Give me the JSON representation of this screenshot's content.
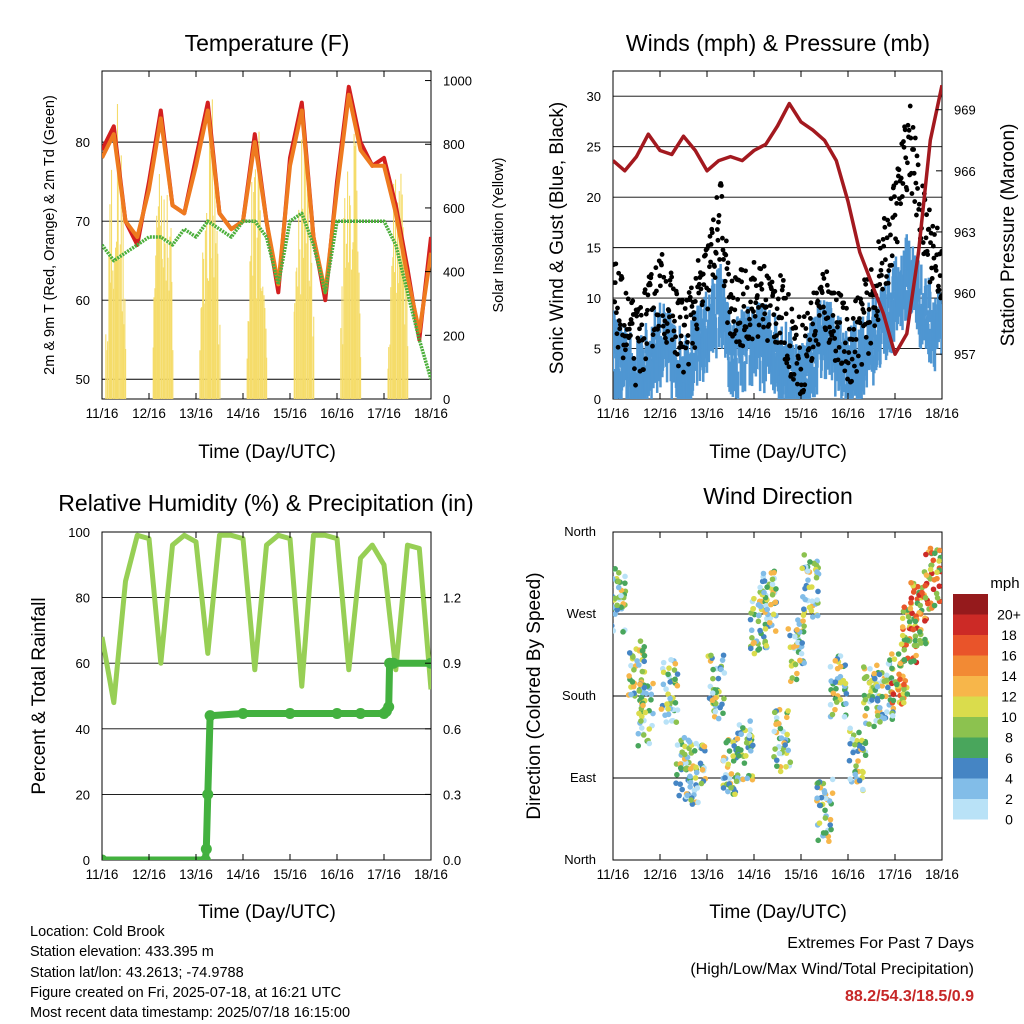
{
  "chart_data": [
    {
      "type": "line",
      "title": "Temperature (F)",
      "xlabel": "Time (Day/UTC)",
      "ylabel": "2m & 9m T (Red, Orange) & 2m Td (Green)",
      "y2label": "Solar Insolation (Yellow)",
      "x_ticks": [
        "11/16",
        "12/16",
        "13/16",
        "14/16",
        "15/16",
        "16/16",
        "17/16",
        "18/16"
      ],
      "ylim": [
        47.5,
        89
      ],
      "y_ticks": [
        50,
        60,
        70,
        80
      ],
      "y2lim": [
        0,
        1030
      ],
      "y2_ticks": [
        0,
        200,
        400,
        600,
        800,
        1000
      ],
      "colors": {
        "t2m": "#d32020",
        "t9m": "#ee7a1f",
        "td": "#4caf3c",
        "solar": "#f5dc6a"
      },
      "series": [
        {
          "key": "t2m",
          "day": [
            11,
            11.25,
            11.5,
            11.75,
            12,
            12.25,
            12.5,
            12.75,
            13,
            13.25,
            13.5,
            13.75,
            14,
            14.25,
            14.5,
            14.75,
            15,
            15.25,
            15.5,
            15.75,
            16,
            16.25,
            16.5,
            16.75,
            17,
            17.25,
            17.5,
            17.75,
            18
          ],
          "values": [
            79,
            82,
            70,
            67,
            75,
            84,
            72,
            71,
            78,
            85,
            71,
            69,
            70,
            81,
            70,
            61,
            78,
            85,
            68,
            60,
            75,
            87,
            80,
            77,
            78,
            72,
            64,
            55,
            68
          ]
        },
        {
          "key": "t9m",
          "day": [
            11,
            11.25,
            11.5,
            11.75,
            12,
            12.25,
            12.5,
            12.75,
            13,
            13.25,
            13.5,
            13.75,
            14,
            14.25,
            14.5,
            14.75,
            15,
            15.25,
            15.5,
            15.75,
            16,
            16.25,
            16.5,
            16.75,
            17,
            17.25,
            17.5,
            17.75,
            18
          ],
          "values": [
            78,
            81,
            70,
            68,
            74,
            83,
            72,
            71,
            77,
            84,
            71,
            69,
            70,
            80,
            70,
            62,
            77,
            84,
            68,
            61,
            74,
            86,
            79,
            77,
            77,
            71,
            63,
            56,
            66
          ]
        },
        {
          "key": "td",
          "day": [
            11,
            11.25,
            11.5,
            11.75,
            12,
            12.25,
            12.5,
            12.75,
            13,
            13.25,
            13.5,
            13.75,
            14,
            14.25,
            14.5,
            14.75,
            15,
            15.25,
            15.5,
            15.75,
            16,
            16.25,
            16.5,
            16.75,
            17,
            17.25,
            17.5,
            17.75,
            18
          ],
          "values": [
            67,
            65,
            66,
            67,
            68,
            68,
            67,
            69,
            68,
            70,
            69,
            68,
            70,
            70,
            68,
            62,
            70,
            71,
            67,
            61,
            70,
            70,
            70,
            70,
            70,
            67,
            61,
            55,
            50
          ]
        }
      ],
      "solar_peak": {
        "day": [
          11.3,
          12.3,
          13.3,
          14.3,
          15.3,
          16.3,
          17.3
        ],
        "values": [
          980,
          1000,
          990,
          900,
          980,
          990,
          900
        ]
      }
    },
    {
      "type": "scatter",
      "title": "Winds (mph) & Pressure (mb)",
      "xlabel": "Time (Day/UTC)",
      "ylabel": "Sonic Wind & Gust (Blue, Black)",
      "y2label": "Station Pressure (Maroon)",
      "x_ticks": [
        "11/16",
        "12/16",
        "13/16",
        "14/16",
        "15/16",
        "16/16",
        "17/16",
        "18/16"
      ],
      "ylim": [
        0,
        32.5
      ],
      "y_ticks": [
        0,
        5,
        10,
        15,
        20,
        25,
        30
      ],
      "y2lim": [
        954.8,
        970.9
      ],
      "y2_ticks": [
        957,
        960,
        963,
        966,
        969
      ],
      "colors": {
        "wind": "#4f96d2",
        "gust": "#000000",
        "pressure": "#a3191f"
      },
      "wind_mean": {
        "day": [
          11,
          11.5,
          12,
          12.5,
          13,
          13.3,
          13.5,
          14,
          14.5,
          15,
          15.5,
          16,
          16.5,
          17,
          17.3,
          17.6,
          18
        ],
        "values": [
          5,
          2,
          6,
          3,
          7,
          10,
          4,
          6,
          5,
          2,
          7,
          3,
          6,
          10,
          13,
          9,
          7
        ]
      },
      "gust_mean": {
        "day": [
          11,
          11.5,
          12,
          12.5,
          13,
          13.3,
          13.5,
          14,
          14.5,
          15,
          15.5,
          16,
          16.5,
          17,
          17.3,
          17.6,
          18
        ],
        "values": [
          10,
          5,
          11,
          6,
          12,
          18,
          8,
          10,
          9,
          4,
          10,
          5,
          9,
          18,
          26,
          17,
          13
        ]
      },
      "pressure": {
        "day": [
          11,
          11.25,
          11.5,
          11.75,
          12,
          12.25,
          12.5,
          12.75,
          13,
          13.25,
          13.5,
          13.75,
          14,
          14.25,
          14.5,
          14.75,
          15,
          15.25,
          15.5,
          15.75,
          16,
          16.25,
          16.5,
          16.75,
          17,
          17.25,
          17.5,
          17.75,
          18
        ],
        "values": [
          966.5,
          966,
          966.7,
          967.8,
          967,
          966.8,
          967.7,
          967,
          966,
          966.5,
          966.7,
          966.5,
          967,
          967.3,
          968.2,
          969.3,
          968.4,
          968,
          967.5,
          966.5,
          964.5,
          962,
          960.5,
          959,
          957,
          958,
          962,
          967.5,
          970.2
        ]
      }
    },
    {
      "type": "line",
      "title": "Relative Humidity (%) & Precipitation (in)",
      "xlabel": "Time (Day/UTC)",
      "ylabel": "Percent & Total Rainfall",
      "x_ticks": [
        "11/16",
        "12/16",
        "13/16",
        "14/16",
        "15/16",
        "16/16",
        "17/16",
        "18/16"
      ],
      "ylim": [
        0,
        100
      ],
      "y_ticks": [
        0,
        20,
        40,
        60,
        80,
        100
      ],
      "y2lim": [
        0,
        1.5
      ],
      "y2_ticks": [
        "0.0",
        "0.3",
        "0.6",
        "0.9",
        "1.2"
      ],
      "colors": {
        "rh": "#97cf55",
        "precip": "#43b13f"
      },
      "series": [
        {
          "key": "rh",
          "day": [
            11,
            11.25,
            11.5,
            11.75,
            12,
            12.25,
            12.5,
            12.75,
            13,
            13.25,
            13.5,
            13.75,
            14,
            14.25,
            14.5,
            14.75,
            15,
            15.25,
            15.5,
            15.75,
            16,
            16.25,
            16.5,
            16.75,
            17,
            17.25,
            17.5,
            17.75,
            18
          ],
          "values": [
            68,
            48,
            85,
            99,
            98,
            60,
            96,
            99,
            97,
            63,
            99,
            99,
            98,
            58,
            96,
            99,
            98,
            53,
            99,
            99,
            98,
            58,
            92,
            96,
            90,
            58,
            96,
            95,
            52
          ]
        },
        {
          "key": "precip",
          "day": [
            11,
            13.2,
            13.22,
            13.25,
            13.3,
            14,
            15,
            16,
            16.5,
            17,
            17.05,
            17.1,
            17.12,
            17.2,
            18
          ],
          "values": [
            0,
            0,
            0.05,
            0.3,
            0.66,
            0.67,
            0.67,
            0.67,
            0.67,
            0.67,
            0.68,
            0.7,
            0.9,
            0.9,
            0.9
          ]
        }
      ]
    },
    {
      "type": "scatter",
      "title": "Wind Direction",
      "xlabel": "Time (Day/UTC)",
      "ylabel": "Direction (Colored By Speed)",
      "x_ticks": [
        "11/16",
        "12/16",
        "13/16",
        "14/16",
        "15/16",
        "16/16",
        "17/16",
        "18/16"
      ],
      "y_ticks": [
        "North",
        "East",
        "South",
        "West",
        "North"
      ],
      "ylim": [
        0,
        360
      ],
      "colorbar": {
        "unit": "mph",
        "labels": [
          "0",
          "2",
          "4",
          "6",
          "8",
          "10",
          "12",
          "14",
          "16",
          "18",
          "20+"
        ],
        "colors": [
          "#b9e2f7",
          "#82bde8",
          "#4585c4",
          "#49a65c",
          "#8cc24f",
          "#dadc4c",
          "#f7b64a",
          "#f28a34",
          "#e9542a",
          "#cc2a26",
          "#951a1c"
        ]
      },
      "clusters": {
        "day": [
          11.1,
          11.5,
          11.7,
          12.2,
          12.5,
          12.8,
          13.2,
          13.5,
          13.8,
          14.1,
          14.3,
          14.6,
          14.9,
          15.2,
          15.5,
          15.8,
          16.2,
          16.5,
          16.8,
          17.1,
          17.3,
          17.5,
          17.8
        ],
        "direction": [
          285,
          210,
          160,
          185,
          100,
          95,
          190,
          100,
          120,
          260,
          285,
          130,
          230,
          300,
          55,
          190,
          110,
          180,
          185,
          200,
          245,
          270,
          310
        ]
      }
    }
  ],
  "info": {
    "location": "Location: Cold Brook",
    "elevation": "Station elevation: 433.395 m",
    "latlon": "Station lat/lon: 43.2613; -74.9788",
    "created": "Figure created on Fri, 2025-07-18, at 16:21 UTC",
    "recent": "Most recent data timestamp: 2025/07/18 16:15:00"
  },
  "extremes": {
    "title": "Extremes For Past 7 Days",
    "subtitle": "(High/Low/Max Wind/Total Precipitation)",
    "values": "88.2/54.3/18.5/0.9"
  }
}
